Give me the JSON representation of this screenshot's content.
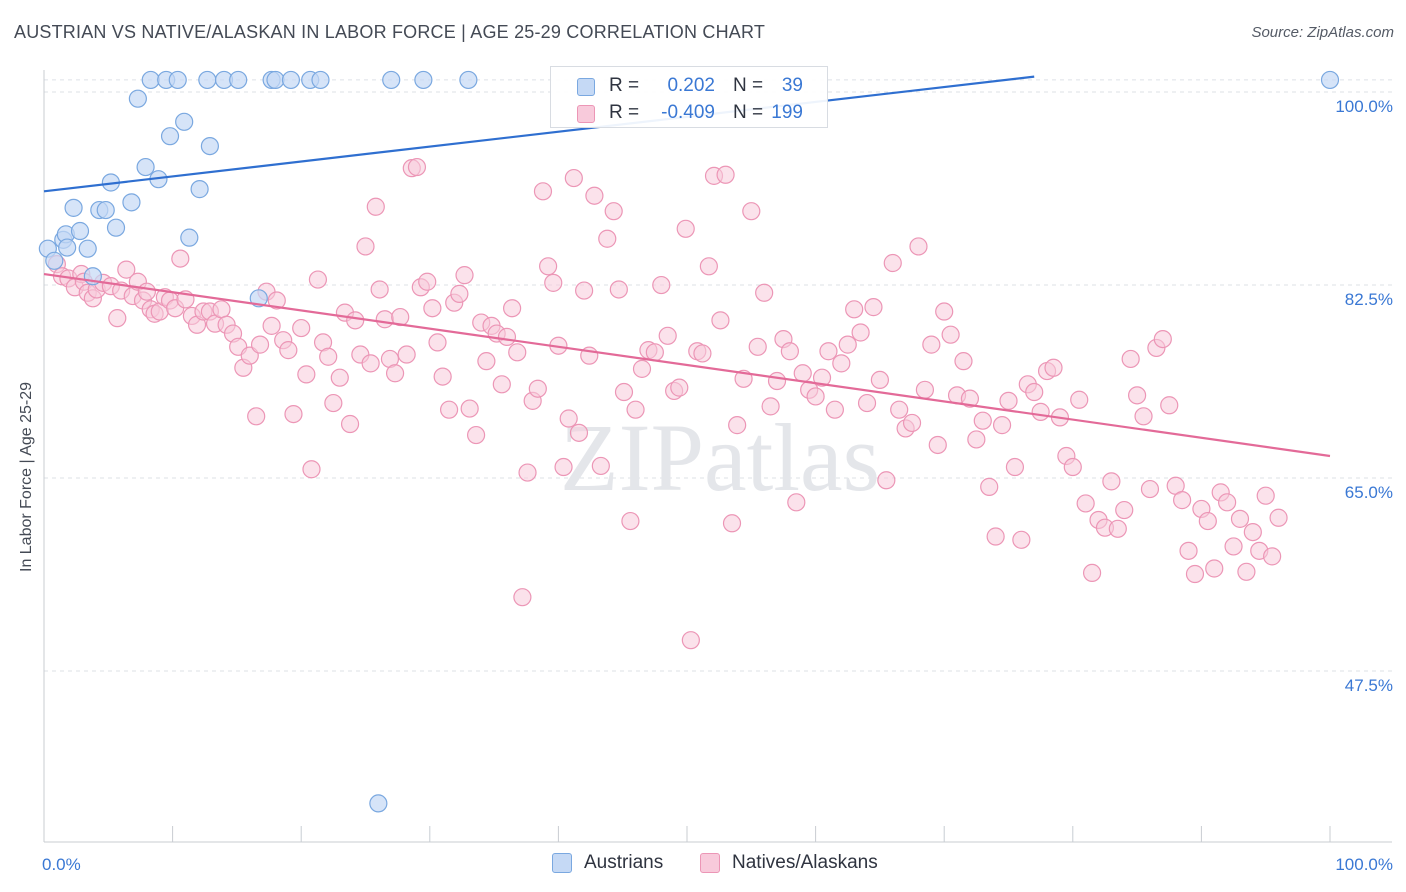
{
  "header": {
    "title": "AUSTRIAN VS NATIVE/ALASKAN IN LABOR FORCE | AGE 25-29 CORRELATION CHART",
    "source": "Source: ZipAtlas.com"
  },
  "watermark": "ZIPatlas",
  "colors": {
    "blue_fill": "#c5d9f5",
    "blue_stroke": "#7aa8e0",
    "blue_line": "#2f6fd0",
    "pink_fill": "#f8cadb",
    "pink_stroke": "#ec96b6",
    "pink_line": "#e36a98",
    "axis_text": "#3a78d4",
    "grid": "#dde1e6"
  },
  "legend": {
    "rows": [
      {
        "series": "Austrians",
        "r_label": "R =",
        "r_value": "0.202",
        "n_label": "N =",
        "n_value": "39"
      },
      {
        "series": "Natives/Alaskans",
        "r_label": "R =",
        "r_value": "-0.409",
        "n_label": "N =",
        "n_value": "199"
      }
    ]
  },
  "chart_data": {
    "type": "scatter",
    "title": "AUSTRIAN VS NATIVE/ALASKAN IN LABOR FORCE | AGE 25-29 CORRELATION CHART",
    "xlabel": "",
    "ylabel": "In Labor Force | Age 25-29",
    "xlim": [
      0,
      100
    ],
    "ylim": [
      32,
      102
    ],
    "x_tick_labels": [
      "0.0%",
      "100.0%"
    ],
    "y_ticks": [
      47.5,
      65.0,
      82.5,
      100.0
    ],
    "y_tick_labels": [
      "47.5%",
      "65.0%",
      "82.5%",
      "100.0%"
    ],
    "grid": true,
    "legend_position": "top-center",
    "series": [
      {
        "name": "Austrians",
        "r": 0.202,
        "n": 39,
        "trend": {
          "x": [
            0,
            77
          ],
          "y": [
            91.0,
            101.4
          ]
        },
        "points": [
          [
            0.3,
            85.8
          ],
          [
            0.8,
            84.7
          ],
          [
            1.5,
            86.6
          ],
          [
            1.7,
            87.1
          ],
          [
            1.8,
            85.9
          ],
          [
            2.3,
            89.5
          ],
          [
            2.8,
            87.4
          ],
          [
            3.4,
            85.8
          ],
          [
            3.8,
            83.3
          ],
          [
            4.3,
            89.3
          ],
          [
            4.8,
            89.3
          ],
          [
            5.2,
            91.8
          ],
          [
            5.6,
            87.7
          ],
          [
            6.8,
            90.0
          ],
          [
            7.3,
            99.4
          ],
          [
            7.9,
            93.2
          ],
          [
            8.3,
            101.1
          ],
          [
            8.9,
            92.1
          ],
          [
            9.5,
            101.1
          ],
          [
            9.8,
            96.0
          ],
          [
            10.4,
            101.1
          ],
          [
            10.9,
            97.3
          ],
          [
            11.3,
            86.8
          ],
          [
            12.1,
            91.2
          ],
          [
            12.7,
            101.1
          ],
          [
            12.9,
            95.1
          ],
          [
            14.0,
            101.1
          ],
          [
            15.1,
            101.1
          ],
          [
            16.7,
            81.3
          ],
          [
            17.7,
            101.1
          ],
          [
            18.0,
            101.1
          ],
          [
            19.2,
            101.1
          ],
          [
            20.7,
            101.1
          ],
          [
            21.5,
            101.1
          ],
          [
            26.0,
            35.5
          ],
          [
            27.0,
            101.1
          ],
          [
            29.5,
            101.1
          ],
          [
            33.0,
            101.1
          ],
          [
            100.0,
            101.1
          ]
        ]
      },
      {
        "name": "Natives/Alaskans",
        "r": -0.409,
        "n": 199,
        "trend": {
          "x": [
            0,
            100
          ],
          "y": [
            83.5,
            67.0
          ]
        },
        "points": [
          [
            1.0,
            84.4
          ],
          [
            1.4,
            83.3
          ],
          [
            1.9,
            83.1
          ],
          [
            2.4,
            82.3
          ],
          [
            2.9,
            83.5
          ],
          [
            3.1,
            82.8
          ],
          [
            3.4,
            81.8
          ],
          [
            3.8,
            81.3
          ],
          [
            4.1,
            82.1
          ],
          [
            4.6,
            82.7
          ],
          [
            5.2,
            82.4
          ],
          [
            5.7,
            79.5
          ],
          [
            6.0,
            82.0
          ],
          [
            6.4,
            83.9
          ],
          [
            6.9,
            81.5
          ],
          [
            7.3,
            82.8
          ],
          [
            7.7,
            81.1
          ],
          [
            8.0,
            81.9
          ],
          [
            8.3,
            80.3
          ],
          [
            8.6,
            79.9
          ],
          [
            9.0,
            80.1
          ],
          [
            9.4,
            81.4
          ],
          [
            9.8,
            81.1
          ],
          [
            10.2,
            80.4
          ],
          [
            10.6,
            84.9
          ],
          [
            11.0,
            81.2
          ],
          [
            11.5,
            79.7
          ],
          [
            11.9,
            78.9
          ],
          [
            12.4,
            80.1
          ],
          [
            12.9,
            80.1
          ],
          [
            13.3,
            79.0
          ],
          [
            13.8,
            80.3
          ],
          [
            14.2,
            78.9
          ],
          [
            14.7,
            78.1
          ],
          [
            15.1,
            76.9
          ],
          [
            15.5,
            75.0
          ],
          [
            16.0,
            76.1
          ],
          [
            16.5,
            70.6
          ],
          [
            16.8,
            77.1
          ],
          [
            17.3,
            81.9
          ],
          [
            17.7,
            78.8
          ],
          [
            18.1,
            81.1
          ],
          [
            18.6,
            77.5
          ],
          [
            19.0,
            76.6
          ],
          [
            19.4,
            70.8
          ],
          [
            20.0,
            78.6
          ],
          [
            20.4,
            74.4
          ],
          [
            20.8,
            65.8
          ],
          [
            21.3,
            83.0
          ],
          [
            21.7,
            77.3
          ],
          [
            22.1,
            76.0
          ],
          [
            22.5,
            71.8
          ],
          [
            23.0,
            74.1
          ],
          [
            23.4,
            80.0
          ],
          [
            23.8,
            69.9
          ],
          [
            24.2,
            79.3
          ],
          [
            24.6,
            76.2
          ],
          [
            25.0,
            86.0
          ],
          [
            25.4,
            75.4
          ],
          [
            25.8,
            89.6
          ],
          [
            26.1,
            82.1
          ],
          [
            26.5,
            79.4
          ],
          [
            26.9,
            75.8
          ],
          [
            27.3,
            74.5
          ],
          [
            27.7,
            79.6
          ],
          [
            28.2,
            76.2
          ],
          [
            28.6,
            93.1
          ],
          [
            29.0,
            93.2
          ],
          [
            29.3,
            82.3
          ],
          [
            29.8,
            82.8
          ],
          [
            30.2,
            80.4
          ],
          [
            30.6,
            77.3
          ],
          [
            31.0,
            74.2
          ],
          [
            31.5,
            71.2
          ],
          [
            31.9,
            80.9
          ],
          [
            32.3,
            81.7
          ],
          [
            32.7,
            83.4
          ],
          [
            33.1,
            71.3
          ],
          [
            33.6,
            68.9
          ],
          [
            34.0,
            79.1
          ],
          [
            34.4,
            75.6
          ],
          [
            34.8,
            78.8
          ],
          [
            35.2,
            78.1
          ],
          [
            35.6,
            73.5
          ],
          [
            36.0,
            77.8
          ],
          [
            36.4,
            80.4
          ],
          [
            36.8,
            76.4
          ],
          [
            37.2,
            54.2
          ],
          [
            37.6,
            65.5
          ],
          [
            38.0,
            72.0
          ],
          [
            38.4,
            73.1
          ],
          [
            38.8,
            91.0
          ],
          [
            39.2,
            84.2
          ],
          [
            39.6,
            82.7
          ],
          [
            40.0,
            77.0
          ],
          [
            40.4,
            66.0
          ],
          [
            40.8,
            70.4
          ],
          [
            41.2,
            92.2
          ],
          [
            41.6,
            69.1
          ],
          [
            42.0,
            82.0
          ],
          [
            42.4,
            76.1
          ],
          [
            42.8,
            90.6
          ],
          [
            43.3,
            66.1
          ],
          [
            43.8,
            86.7
          ],
          [
            44.3,
            89.2
          ],
          [
            44.7,
            82.1
          ],
          [
            45.1,
            72.8
          ],
          [
            45.6,
            61.1
          ],
          [
            46.0,
            71.2
          ],
          [
            46.5,
            74.9
          ],
          [
            47.0,
            76.6
          ],
          [
            47.5,
            76.4
          ],
          [
            48.0,
            82.5
          ],
          [
            48.5,
            77.9
          ],
          [
            49.0,
            72.9
          ],
          [
            49.4,
            73.2
          ],
          [
            49.9,
            87.6
          ],
          [
            50.3,
            50.3
          ],
          [
            50.8,
            76.5
          ],
          [
            51.2,
            76.3
          ],
          [
            51.7,
            84.2
          ],
          [
            52.1,
            92.4
          ],
          [
            52.6,
            79.3
          ],
          [
            53.0,
            92.5
          ],
          [
            53.5,
            60.9
          ],
          [
            53.9,
            69.8
          ],
          [
            54.4,
            74.0
          ],
          [
            55.0,
            89.2
          ],
          [
            55.5,
            76.9
          ],
          [
            56.0,
            81.8
          ],
          [
            56.5,
            71.5
          ],
          [
            57.0,
            73.8
          ],
          [
            57.5,
            77.6
          ],
          [
            58.0,
            76.5
          ],
          [
            58.5,
            62.8
          ],
          [
            59.0,
            74.5
          ],
          [
            59.5,
            73.0
          ],
          [
            60.0,
            72.4
          ],
          [
            60.5,
            74.1
          ],
          [
            61.0,
            76.5
          ],
          [
            61.5,
            71.2
          ],
          [
            62.0,
            75.4
          ],
          [
            62.5,
            77.1
          ],
          [
            63.0,
            80.3
          ],
          [
            63.5,
            78.2
          ],
          [
            64.0,
            71.8
          ],
          [
            64.5,
            80.5
          ],
          [
            65.0,
            73.9
          ],
          [
            65.5,
            64.8
          ],
          [
            66.0,
            84.5
          ],
          [
            66.5,
            71.2
          ],
          [
            67.0,
            69.5
          ],
          [
            67.5,
            70.0
          ],
          [
            68.0,
            86.0
          ],
          [
            68.5,
            73.0
          ],
          [
            69.0,
            77.1
          ],
          [
            69.5,
            68.0
          ],
          [
            70.0,
            80.1
          ],
          [
            70.5,
            78.0
          ],
          [
            71.0,
            72.5
          ],
          [
            71.5,
            75.6
          ],
          [
            72.0,
            72.2
          ],
          [
            72.5,
            68.5
          ],
          [
            73.0,
            70.2
          ],
          [
            73.5,
            64.2
          ],
          [
            74.0,
            59.7
          ],
          [
            74.5,
            69.8
          ],
          [
            75.0,
            72.0
          ],
          [
            75.5,
            66.0
          ],
          [
            76.0,
            59.4
          ],
          [
            76.5,
            73.5
          ],
          [
            77.0,
            72.8
          ],
          [
            77.5,
            71.0
          ],
          [
            78.0,
            74.7
          ],
          [
            78.5,
            75.0
          ],
          [
            79.0,
            70.5
          ],
          [
            79.5,
            67.0
          ],
          [
            80.0,
            66.0
          ],
          [
            80.5,
            72.1
          ],
          [
            81.0,
            62.7
          ],
          [
            81.5,
            56.4
          ],
          [
            82.0,
            61.2
          ],
          [
            82.5,
            60.5
          ],
          [
            83.0,
            64.7
          ],
          [
            83.5,
            60.4
          ],
          [
            84.0,
            62.1
          ],
          [
            84.5,
            75.8
          ],
          [
            85.0,
            72.5
          ],
          [
            85.5,
            70.6
          ],
          [
            86.0,
            64.0
          ],
          [
            86.5,
            76.8
          ],
          [
            87.0,
            77.6
          ],
          [
            87.5,
            71.6
          ],
          [
            88.0,
            64.3
          ],
          [
            88.5,
            63.0
          ],
          [
            89.0,
            58.4
          ],
          [
            89.5,
            56.3
          ],
          [
            90.0,
            62.2
          ],
          [
            90.5,
            61.1
          ],
          [
            91.0,
            56.8
          ],
          [
            91.5,
            63.7
          ],
          [
            92.0,
            62.8
          ],
          [
            92.5,
            58.8
          ],
          [
            93.0,
            61.3
          ],
          [
            93.5,
            56.5
          ],
          [
            94.0,
            60.1
          ],
          [
            94.5,
            58.4
          ],
          [
            95.0,
            63.4
          ],
          [
            95.5,
            57.9
          ],
          [
            96.0,
            61.4
          ]
        ]
      }
    ]
  }
}
